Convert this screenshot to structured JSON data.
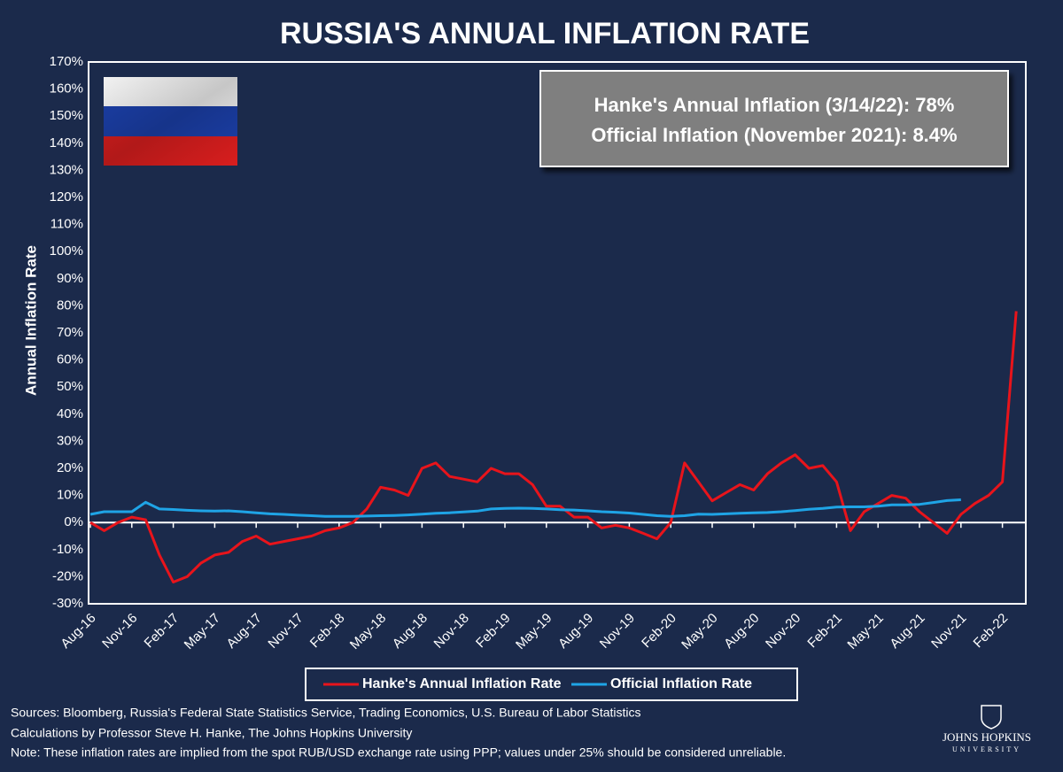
{
  "chart_data": {
    "type": "line",
    "title": "RUSSIA'S ANNUAL INFLATION RATE",
    "y_label": "Annual Inflation Rate",
    "annotations": [
      "Hanke's Annual Inflation (3/14/22): 78%",
      "Official Inflation (November 2021): 8.4%"
    ],
    "notes": [
      "Sources: Bloomberg, Russia's Federal State Statistics Service, Trading Economics, U.S. Bureau of Labor Statistics",
      "Calculations by Professor Steve H. Hanke, The Johns Hopkins University",
      "Note: These inflation rates are implied from the spot RUB/USD exchange rate using PPP; values under 25% should be considered unreliable."
    ],
    "logo": [
      "JOHNS HOPKINS",
      "UNIVERSITY"
    ],
    "categories": [
      "Aug-16",
      "Sep-16",
      "Oct-16",
      "Nov-16",
      "Dec-16",
      "Jan-17",
      "Feb-17",
      "Mar-17",
      "Apr-17",
      "May-17",
      "Jun-17",
      "Jul-17",
      "Aug-17",
      "Sep-17",
      "Oct-17",
      "Nov-17",
      "Dec-17",
      "Jan-18",
      "Feb-18",
      "Mar-18",
      "Apr-18",
      "May-18",
      "Jun-18",
      "Jul-18",
      "Aug-18",
      "Sep-18",
      "Oct-18",
      "Nov-18",
      "Dec-18",
      "Jan-19",
      "Feb-19",
      "Mar-19",
      "Apr-19",
      "May-19",
      "Jun-19",
      "Jul-19",
      "Aug-19",
      "Sep-19",
      "Oct-19",
      "Nov-19",
      "Dec-19",
      "Jan-20",
      "Feb-20",
      "Mar-20",
      "Apr-20",
      "May-20",
      "Jun-20",
      "Jul-20",
      "Aug-20",
      "Sep-20",
      "Oct-20",
      "Nov-20",
      "Dec-20",
      "Jan-21",
      "Feb-21",
      "Mar-21",
      "Apr-21",
      "May-21",
      "Jun-21",
      "Jul-21",
      "Aug-21",
      "Sep-21",
      "Oct-21",
      "Nov-21",
      "Dec-21",
      "Jan-22",
      "Feb-22",
      "Mar-22"
    ],
    "xticks": [
      "Aug-16",
      "Nov-16",
      "Feb-17",
      "May-17",
      "Aug-17",
      "Nov-17",
      "Feb-18",
      "May-18",
      "Aug-18",
      "Nov-18",
      "Feb-19",
      "May-19",
      "Aug-19",
      "Nov-19",
      "Feb-20",
      "May-20",
      "Aug-20",
      "Nov-20",
      "Feb-21",
      "May-21",
      "Aug-21",
      "Nov-21",
      "Feb-22"
    ],
    "series": [
      {
        "name": "Hanke's Annual Inflation Rate",
        "color": "#e8141b",
        "values": [
          0,
          -3,
          0,
          2,
          1,
          -12,
          -22,
          -20,
          -15,
          -12,
          -11,
          -7,
          -5,
          -8,
          -7,
          -6,
          -5,
          -3,
          -2,
          0,
          5,
          13,
          12,
          10,
          20,
          22,
          17,
          16,
          15,
          20,
          18,
          18,
          14,
          6,
          6,
          2,
          2,
          -2,
          -1,
          -2,
          -4,
          -6,
          0,
          22,
          15,
          8,
          11,
          14,
          12,
          18,
          22,
          25,
          20,
          21,
          15,
          -3,
          4,
          7,
          10,
          9,
          4,
          0,
          -4,
          3,
          7,
          10,
          15,
          78
        ]
      },
      {
        "name": "Official Inflation Rate",
        "color": "#1fa4e6",
        "values": [
          3,
          4,
          4,
          4,
          7.5,
          5,
          4.8,
          4.5,
          4.3,
          4.2,
          4.3,
          4,
          3.6,
          3.2,
          3,
          2.7,
          2.5,
          2.3,
          2.3,
          2.3,
          2.4,
          2.5,
          2.6,
          2.8,
          3.1,
          3.4,
          3.6,
          3.9,
          4.2,
          5,
          5.2,
          5.3,
          5.2,
          5,
          4.7,
          4.6,
          4.3,
          4,
          3.8,
          3.5,
          3,
          2.5,
          2.3,
          2.5,
          3.1,
          3,
          3.2,
          3.4,
          3.6,
          3.7,
          4,
          4.4,
          4.9,
          5.2,
          5.7,
          5.8,
          5.8,
          6,
          6.5,
          6.5,
          6.7,
          7.4,
          8.1,
          8.4,
          null,
          null,
          null,
          null
        ]
      }
    ],
    "ylim": [
      -30,
      170
    ],
    "yticks": [
      {
        "value": -30,
        "label": "-30%"
      },
      {
        "value": -20,
        "label": "-20%"
      },
      {
        "value": -10,
        "label": "-10%"
      },
      {
        "value": 0,
        "label": "0%"
      },
      {
        "value": 10,
        "label": "10%"
      },
      {
        "value": 20,
        "label": "20%"
      },
      {
        "value": 30,
        "label": "30%"
      },
      {
        "value": 40,
        "label": "40%"
      },
      {
        "value": 50,
        "label": "50%"
      },
      {
        "value": 60,
        "label": "60%"
      },
      {
        "value": 70,
        "label": "70%"
      },
      {
        "value": 80,
        "label": "80%"
      },
      {
        "value": 90,
        "label": "90%"
      },
      {
        "value": 100,
        "label": "100%"
      },
      {
        "value": 110,
        "label": "110%"
      },
      {
        "value": 120,
        "label": "120%"
      },
      {
        "value": 130,
        "label": "130%"
      },
      {
        "value": 140,
        "label": "140%"
      },
      {
        "value": 150,
        "label": "150%"
      },
      {
        "value": 160,
        "label": "160%"
      },
      {
        "value": 170,
        "label": "170%"
      }
    ]
  }
}
